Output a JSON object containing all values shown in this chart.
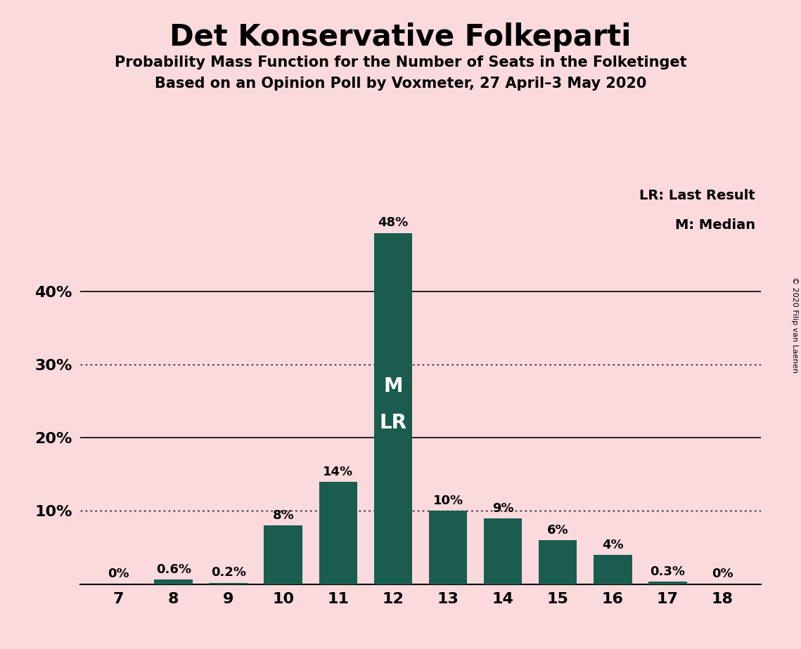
{
  "title": "Det Konservative Folkeparti",
  "subtitle1": "Probability Mass Function for the Number of Seats in the Folketinget",
  "subtitle2": "Based on an Opinion Poll by Voxmeter, 27 April–3 May 2020",
  "copyright": "© 2020 Filip van Laenen",
  "seats": [
    7,
    8,
    9,
    10,
    11,
    12,
    13,
    14,
    15,
    16,
    17,
    18
  ],
  "probabilities": [
    0.0,
    0.6,
    0.2,
    8.0,
    14.0,
    48.0,
    10.0,
    9.0,
    6.0,
    4.0,
    0.3,
    0.0
  ],
  "bar_labels": [
    "0%",
    "0.6%",
    "0.2%",
    "8%",
    "14%",
    "48%",
    "10%",
    "9%",
    "6%",
    "4%",
    "0.3%",
    "0%"
  ],
  "bar_color": "#1a5c4e",
  "background_color": "#fadadd",
  "ylim": [
    0,
    55
  ],
  "median_seat": 12,
  "last_result_seat": 12,
  "legend_text1": "LR: Last Result",
  "legend_text2": "M: Median",
  "dotted_lines": [
    10,
    30
  ],
  "solid_lines": [
    20,
    40
  ],
  "bar_width": 0.7,
  "ytick_positions": [
    10,
    20,
    30,
    40
  ],
  "ytick_labels": [
    "10%",
    "20%",
    "30%",
    "40%"
  ]
}
